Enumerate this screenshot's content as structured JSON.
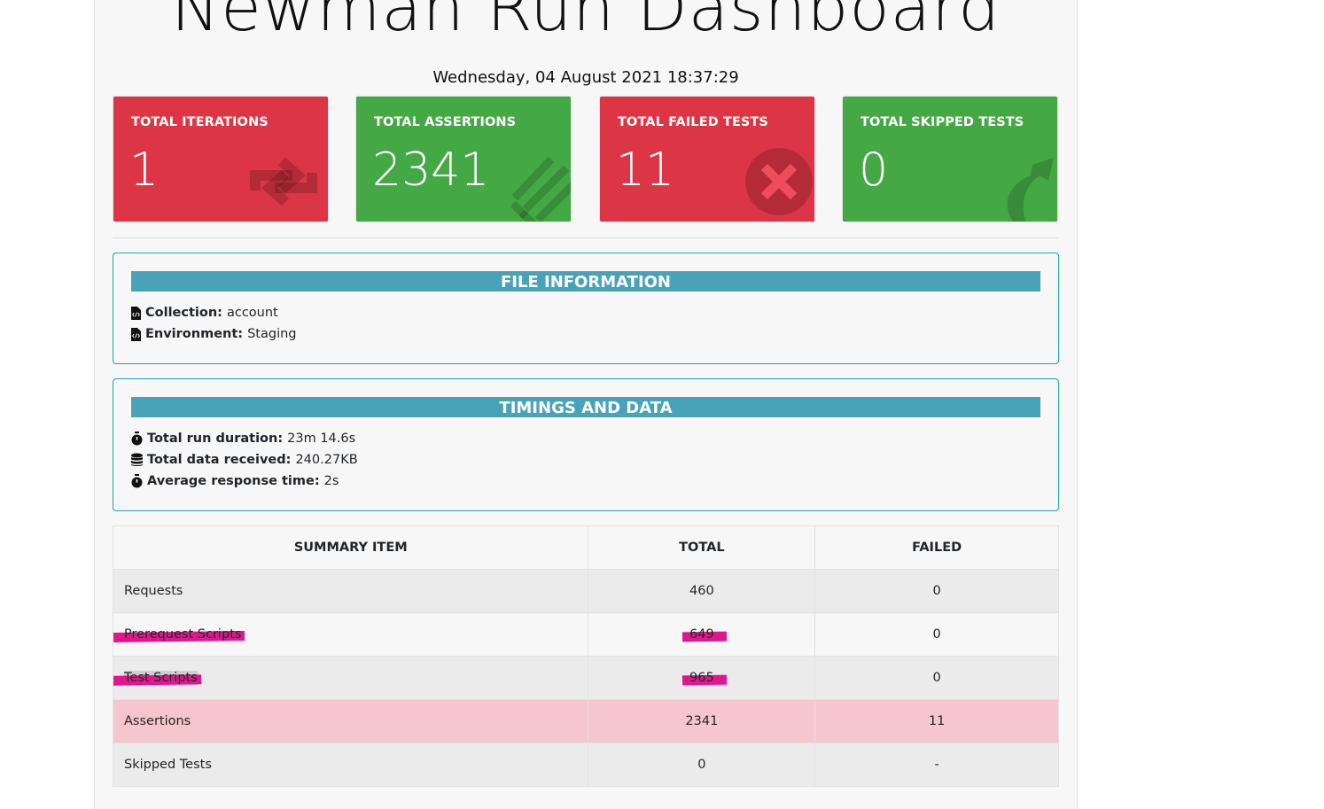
{
  "header": {
    "title": "Newman Run Dashboard",
    "date": "Wednesday, 04 August 2021 18:37:29"
  },
  "cards": [
    {
      "label": "TOTAL ITERATIONS",
      "value": "1",
      "icon": "refresh-icon",
      "color": "#dc3545"
    },
    {
      "label": "TOTAL ASSERTIONS",
      "value": "2341",
      "icon": "asterisk-icon",
      "color": "#44a845"
    },
    {
      "label": "TOTAL FAILED TESTS",
      "value": "11",
      "icon": "times-circle-icon",
      "color": "#dc3545"
    },
    {
      "label": "TOTAL SKIPPED TESTS",
      "value": "0",
      "icon": "share-arrow-icon",
      "color": "#44a845"
    }
  ],
  "file_info": {
    "header": "FILE INFORMATION",
    "collection_label": "Collection:",
    "collection_value": "account",
    "environment_label": "Environment:",
    "environment_value": "Staging"
  },
  "timings": {
    "header": "TIMINGS AND DATA",
    "duration_label": "Total run duration:",
    "duration_value": "23m 14.6s",
    "data_label": "Total data received:",
    "data_value": "240.27KB",
    "response_label": "Average response time:",
    "response_value": "2s"
  },
  "summary": {
    "columns": [
      "SUMMARY ITEM",
      "TOTAL",
      "FAILED"
    ],
    "rows": [
      {
        "item": "Requests",
        "total": "460",
        "failed": "0"
      },
      {
        "item": "Prerequest Scripts",
        "total": "649",
        "failed": "0"
      },
      {
        "item": "Test Scripts",
        "total": "965",
        "failed": "0"
      },
      {
        "item": "Assertions",
        "total": "2341",
        "failed": "11"
      },
      {
        "item": "Skipped Tests",
        "total": "0",
        "failed": "-"
      }
    ]
  },
  "colors": {
    "danger": "#dc3545",
    "success": "#44a845",
    "info": "#48a3b8",
    "highlight_marker": "#e0168f",
    "danger_row": "#f5c6cb"
  }
}
